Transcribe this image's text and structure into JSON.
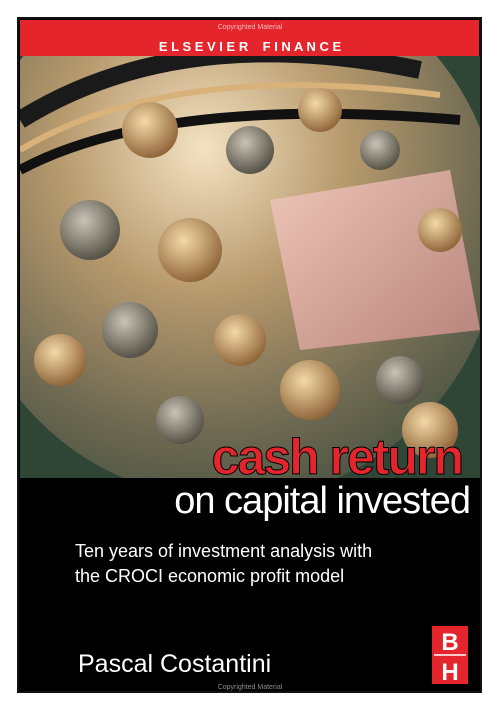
{
  "header": {
    "series": "E L S E V I E R    F I N A N C E",
    "watermark": "Copyrighted Material"
  },
  "title": {
    "line1": "cash return",
    "line2": "on capital invested"
  },
  "subtitle": {
    "line1": "Ten years of investment analysis with",
    "line2": "the CROCI economic profit model"
  },
  "author": "Pascal Costantini",
  "publisher_logo": {
    "top": "B",
    "bottom": "H"
  },
  "footer": {
    "watermark": "Copyrighted Material"
  }
}
